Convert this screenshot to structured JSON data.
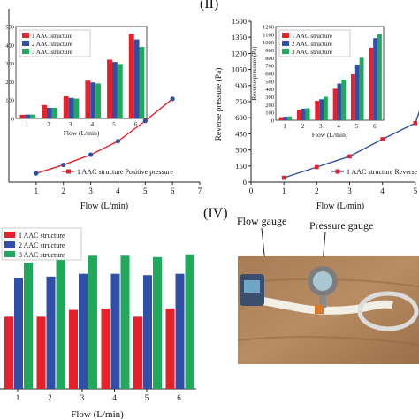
{
  "panel_labels": {
    "top_right": "(II)",
    "bottom_right": "(IV)"
  },
  "photo_labels": {
    "flow": "Flow gauge",
    "pressure": "Pressure gauge"
  },
  "colors": {
    "s1": "#e8202a",
    "s2": "#2f4fa8",
    "s3": "#1eaa5a",
    "line": "#2f4fa8",
    "marker": "#e8202a"
  },
  "chart_data": [
    {
      "id": "panel-I",
      "type": "line",
      "xlabel": "Flow (L/min)",
      "ylabel": "",
      "xlim": [
        0,
        7
      ],
      "xticks": [
        1,
        2,
        3,
        4,
        5,
        6,
        7
      ],
      "legend": [
        "1 AAC structure Positive pressure"
      ],
      "legend_position": "bottom-right",
      "series": [
        {
          "name": "1 AAC structure Positive pressure",
          "x": [
            1,
            2,
            3,
            4,
            5,
            6
          ],
          "y": [
            20,
            70,
            130,
            210,
            330,
            460
          ]
        }
      ],
      "inset": {
        "type": "bar",
        "xlabel": "Flow (L/min)",
        "categories": [
          "1",
          "2",
          "3",
          "4",
          "5",
          "6"
        ],
        "ylim": [
          0,
          500
        ],
        "yticks": [
          0,
          100,
          200,
          300,
          400,
          500
        ],
        "legend": [
          "1 AAC structure",
          "2 AAC structure",
          "3 AAC structure"
        ],
        "series": [
          {
            "name": "1 AAC structure",
            "values": [
              20,
              73,
              120,
              206,
              320,
              460
            ]
          },
          {
            "name": "2 AAC structure",
            "values": [
              21,
              58,
              112,
              196,
              307,
              430
            ]
          },
          {
            "name": "3 AAC structure",
            "values": [
              21,
              58,
              108,
              190,
              296,
              389
            ]
          }
        ]
      }
    },
    {
      "id": "panel-II",
      "type": "line",
      "xlabel": "Flow (L/min)",
      "ylabel": "Reverse pressure (Pa)",
      "xlim": [
        0,
        6
      ],
      "ylim": [
        0,
        1500
      ],
      "xticks": [
        0,
        1,
        2,
        3,
        4,
        5
      ],
      "yticks": [
        0,
        150,
        300,
        450,
        600,
        750,
        900,
        1050,
        1200,
        1350,
        1500
      ],
      "legend": [
        "1 AAC structure Reverse"
      ],
      "legend_position": "bottom-right",
      "series": [
        {
          "name": "1 AAC structure Reverse",
          "x": [
            1,
            2,
            3,
            4,
            5
          ],
          "y": [
            40,
            140,
            240,
            400,
            550
          ]
        }
      ],
      "inset": {
        "type": "bar",
        "xlabel": "Flow (L/min)",
        "ylabel": "Reverse pressure (Pa)",
        "categories": [
          "1",
          "2",
          "3",
          "4",
          "5",
          "6"
        ],
        "ylim": [
          0,
          1200
        ],
        "yticks": [
          0,
          100,
          200,
          300,
          400,
          500,
          600,
          700,
          800,
          900,
          1000,
          1100,
          1200
        ],
        "legend": [
          "1 AAC structure",
          "2 AAC structure",
          "3 AAC structure"
        ],
        "series": [
          {
            "name": "1 AAC structure",
            "values": [
              38,
              135,
              248,
              403,
              588,
              930
            ]
          },
          {
            "name": "2 AAC structure",
            "values": [
              45,
              148,
              268,
              470,
              710,
              1050
            ]
          },
          {
            "name": "3 AAC structure",
            "values": [
              48,
              153,
              300,
              520,
              800,
              1100
            ]
          }
        ]
      }
    },
    {
      "id": "panel-III",
      "type": "bar",
      "xlabel": "Flow (L/min)",
      "categories": [
        "1",
        "2",
        "3",
        "4",
        "5",
        "6"
      ],
      "legend": [
        "1 AAC structure",
        "2 AAC structure",
        "3 AAC structure"
      ],
      "legend_position": "top-left",
      "series": [
        {
          "name": "1 AAC structure",
          "values": [
            0.52,
            0.52,
            0.57,
            0.58,
            0.52,
            0.58
          ]
        },
        {
          "name": "2 AAC structure",
          "values": [
            0.8,
            0.81,
            0.83,
            0.83,
            0.82,
            0.83
          ]
        },
        {
          "name": "3 AAC structure",
          "values": [
            0.91,
            0.95,
            0.96,
            0.96,
            0.95,
            0.97
          ]
        }
      ]
    }
  ]
}
